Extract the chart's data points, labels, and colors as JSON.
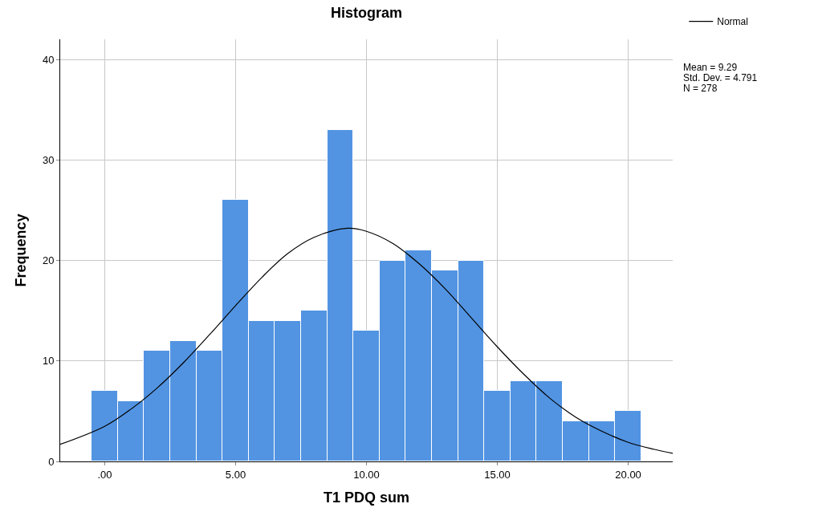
{
  "chart_data": {
    "type": "histogram",
    "title": "Histogram",
    "xlabel": "T1 PDQ sum",
    "ylabel": "Frequency",
    "series": [
      {
        "color": "#5294e2",
        "bins": [
          -0.5,
          0.5,
          1.5,
          2.5,
          3.5,
          4.5,
          5.5,
          6.5,
          7.5,
          8.5,
          9.5,
          10.5,
          11.5,
          12.5,
          13.5,
          14.5,
          15.5,
          16.5,
          17.5,
          18.5,
          19.5,
          20.5
        ],
        "values": [
          7,
          6,
          11,
          12,
          11,
          26,
          14,
          14,
          15,
          33,
          13,
          20,
          21,
          19,
          20,
          7,
          8,
          8,
          4,
          4,
          5
        ]
      },
      {
        "type": "line",
        "name": "Normal",
        "color": "#000000",
        "x": [
          -1.7,
          0,
          1,
          2,
          3,
          4,
          5,
          6,
          7,
          8,
          9.29,
          10,
          11,
          12,
          13,
          14,
          15,
          16,
          17,
          18,
          19,
          20,
          21,
          21.7
        ],
        "values": [
          1.7,
          3.5,
          5.2,
          7.3,
          9.8,
          12.6,
          15.5,
          18.3,
          20.7,
          22.3,
          23.2,
          22.9,
          21.7,
          19.7,
          17.2,
          14.3,
          11.4,
          8.7,
          6.3,
          4.4,
          3.0,
          1.9,
          1.2,
          0.8
        ]
      }
    ],
    "xlim": [
      -1.7,
      21.7
    ],
    "xticks": [
      {
        "value": 0,
        "label": ".00"
      },
      {
        "value": 5,
        "label": "5.00"
      },
      {
        "value": 10,
        "label": "10.00"
      },
      {
        "value": 15,
        "label": "15.00"
      },
      {
        "value": 20,
        "label": "20.00"
      }
    ],
    "ylim": [
      0,
      42
    ],
    "yticks": [
      0,
      10,
      20,
      30,
      40
    ],
    "grid": true,
    "legend": "top right",
    "line_style": "solid",
    "marker": "none",
    "annotations": [
      "Mean = 9.29",
      "Std. Dev. = 4.791",
      "N = 278"
    ]
  }
}
